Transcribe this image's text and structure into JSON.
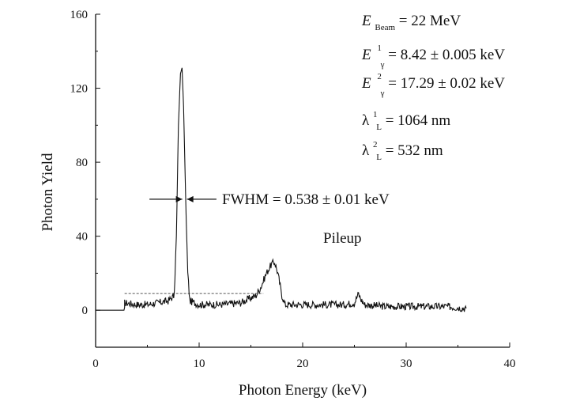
{
  "chart_data": {
    "type": "line",
    "title": "",
    "xlabel": "Photon Energy (keV)",
    "ylabel": "Photon Yield",
    "xlim": [
      0,
      40
    ],
    "ylim": [
      -20,
      160
    ],
    "x_ticks": [
      0,
      10,
      20,
      30,
      40
    ],
    "y_ticks": [
      0,
      40,
      80,
      120,
      160
    ],
    "x_tick_labels": [
      "0",
      "10",
      "20",
      "30",
      "40"
    ],
    "y_tick_labels": [
      "0",
      "40",
      "80",
      "120",
      "160"
    ],
    "grid": false,
    "legend": "none",
    "line_color": "#111111",
    "series": [
      {
        "x": [
          0,
          2.8,
          2.8,
          4,
          5,
          6,
          7,
          7.6,
          7.8,
          8.0,
          8.2,
          8.35,
          8.5,
          8.7,
          8.9,
          9.1,
          10,
          12,
          14,
          15.5,
          16.0,
          16.5,
          17.0,
          17.3,
          17.6,
          18.0,
          18.3,
          20,
          22,
          24,
          25.0,
          25.4,
          25.6,
          26.0,
          28,
          30,
          32,
          34,
          35.8
        ],
        "y": [
          0,
          0,
          4,
          3,
          3,
          4,
          5,
          8,
          40,
          100,
          128,
          131,
          110,
          60,
          20,
          5,
          3,
          3,
          4,
          8,
          13,
          20,
          25,
          26,
          20,
          8,
          3,
          3,
          3,
          3,
          4,
          9,
          6,
          3,
          2,
          2,
          2,
          2,
          1
        ]
      }
    ],
    "annotations": {
      "peak1_label": "FWHM = 0.538 ± 0.01 keV",
      "pileup_label": "Pileup",
      "beam_e": "E",
      "beam_sub": "Beam",
      "beam_val": " = 22 MeV",
      "e1": "E",
      "e1_sup": "1",
      "e1_sub": "γ",
      "e1_val": " = 8.42 ± 0.005 keV",
      "e2": "E",
      "e2_sup": "2",
      "e2_sub": "γ",
      "e2_val": " = 17.29 ± 0.02 keV",
      "l1": "λ",
      "l1_sup": "1",
      "l1_sub": "L",
      "l1_val": " = 1064 nm",
      "l2": "λ",
      "l2_sup": "2",
      "l2_sub": "L",
      "l2_val": " = 532 nm"
    },
    "fwhm_marker": {
      "x_left": 5.2,
      "x_right": 9.0,
      "x_center": 8.6,
      "y": 60
    },
    "pileup_level": 9
  }
}
